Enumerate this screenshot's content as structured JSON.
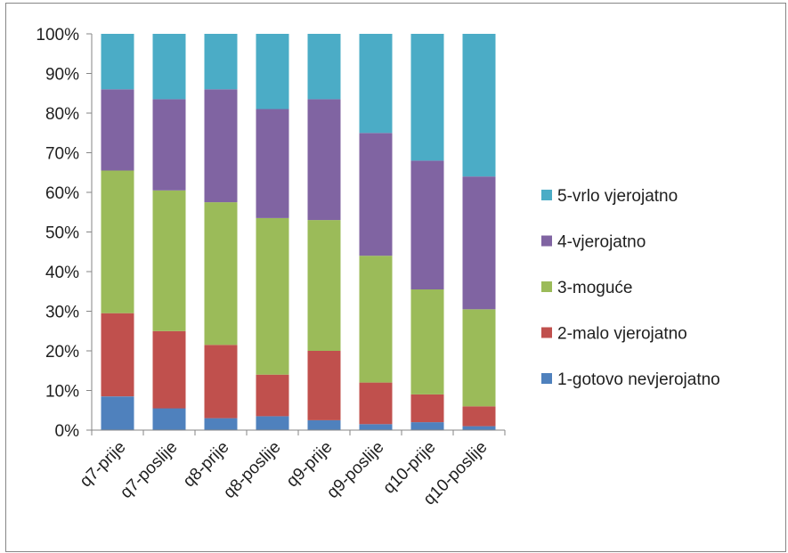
{
  "chart_data": {
    "type": "bar",
    "stacked": true,
    "percent": true,
    "categories": [
      "q7-prije",
      "q7-poslije",
      "q8-prije",
      "q8-poslije",
      "q9-prije",
      "q9-poslije",
      "q10-prije",
      "q10-poslije"
    ],
    "series": [
      {
        "name": "1-gotovo nevjerojatno",
        "color": "#4F81BD",
        "values": [
          8.5,
          5.5,
          3.0,
          3.5,
          2.5,
          1.5,
          2.0,
          1.0
        ]
      },
      {
        "name": "2-malo vjerojatno",
        "color": "#C0504D",
        "values": [
          21.0,
          19.5,
          18.5,
          10.5,
          17.5,
          10.5,
          7.0,
          5.0
        ]
      },
      {
        "name": "3-moguće",
        "color": "#9BBB59",
        "values": [
          36.0,
          35.5,
          36.0,
          39.5,
          33.0,
          32.0,
          26.5,
          24.5
        ]
      },
      {
        "name": "4-vjerojatno",
        "color": "#8064A2",
        "values": [
          20.5,
          23.0,
          28.5,
          27.5,
          30.5,
          31.0,
          32.5,
          33.5
        ]
      },
      {
        "name": "5-vrlo vjerojatno",
        "color": "#4BACC6",
        "values": [
          14.0,
          16.5,
          14.0,
          19.0,
          16.5,
          25.0,
          32.0,
          36.0
        ]
      }
    ],
    "y_ticks": [
      "0%",
      "10%",
      "20%",
      "30%",
      "40%",
      "50%",
      "60%",
      "70%",
      "80%",
      "90%",
      "100%"
    ],
    "ylim": [
      0,
      100
    ],
    "grid": false,
    "legend_position": "right"
  }
}
